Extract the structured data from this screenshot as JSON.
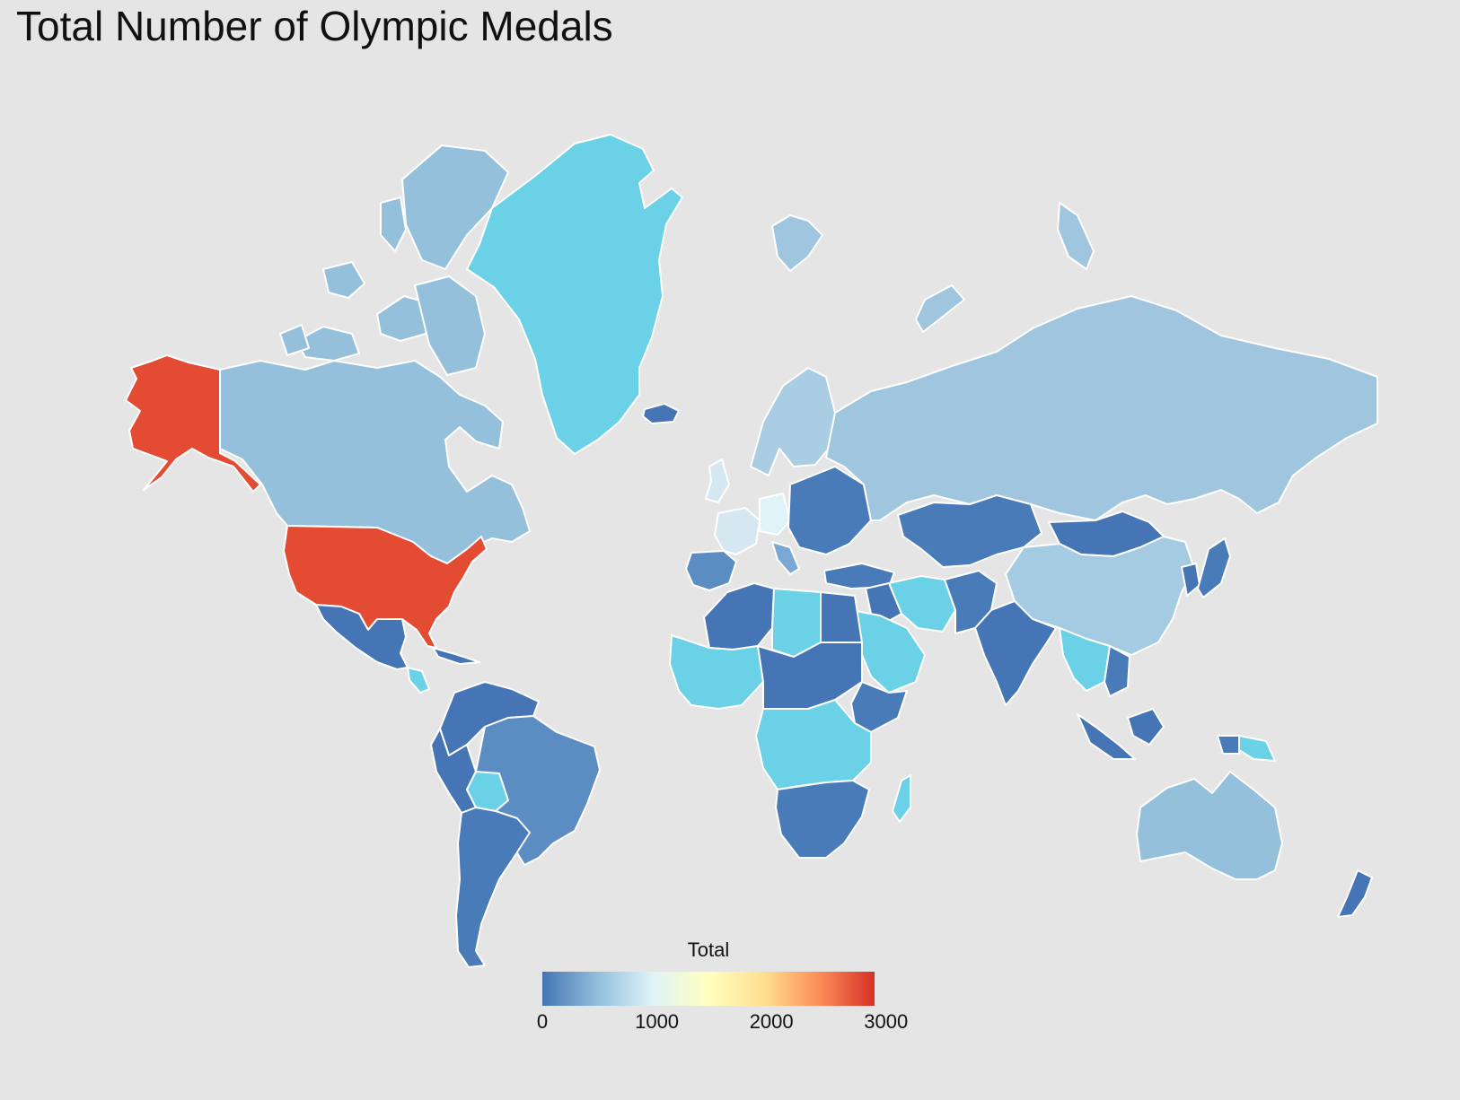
{
  "title": "Total Number of Olympic Medals",
  "colors": {
    "background": "#e5e5e5",
    "border": "#ffffff",
    "scale": [
      "#4575b4",
      "#91bfdb",
      "#e0f3f8",
      "#ffffbf",
      "#fee090",
      "#fc8d59",
      "#d73027"
    ],
    "no_data": "#6ad1e6"
  },
  "legend": {
    "title": "Total",
    "min": 0,
    "max": 2900,
    "ticks": [
      {
        "value": 0,
        "label": "0"
      },
      {
        "value": 1000,
        "label": "1000"
      },
      {
        "value": 2000,
        "label": "2000"
      },
      {
        "value": 3000,
        "label": "3000"
      }
    ]
  },
  "map_data": {
    "projection": "mercator",
    "metric": "Total",
    "regions": [
      {
        "name": "United States",
        "value": 2800
      },
      {
        "name": "Russia",
        "value": 620
      },
      {
        "name": "Canada",
        "value": 530
      },
      {
        "name": "China",
        "value": 600
      },
      {
        "name": "Australia",
        "value": 560
      },
      {
        "name": "Germany",
        "value": 920
      },
      {
        "name": "France",
        "value": 800
      },
      {
        "name": "Brazil",
        "value": 130
      },
      {
        "name": "India",
        "value": 30
      },
      {
        "name": "Mexico",
        "value": 70
      },
      {
        "name": "Argentina",
        "value": 80
      },
      {
        "name": "Greenland",
        "value": null
      },
      {
        "name": "Iceland",
        "value": 5
      }
    ]
  }
}
